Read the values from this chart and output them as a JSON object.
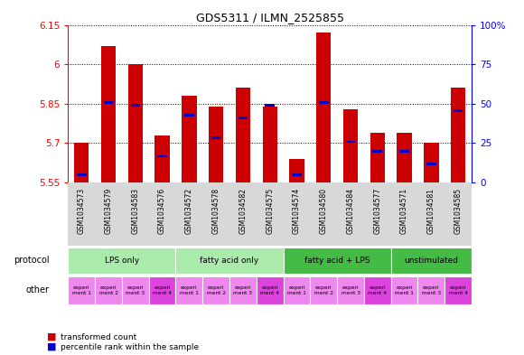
{
  "title": "GDS5311 / ILMN_2525855",
  "samples": [
    "GSM1034573",
    "GSM1034579",
    "GSM1034583",
    "GSM1034576",
    "GSM1034572",
    "GSM1034578",
    "GSM1034582",
    "GSM1034575",
    "GSM1034574",
    "GSM1034580",
    "GSM1034584",
    "GSM1034577",
    "GSM1034571",
    "GSM1034581",
    "GSM1034585"
  ],
  "bar_heights": [
    5.7,
    6.07,
    6.0,
    5.73,
    5.88,
    5.84,
    5.91,
    5.84,
    5.64,
    6.12,
    5.83,
    5.74,
    5.74,
    5.7,
    5.91
  ],
  "blue_positions": [
    5.575,
    5.85,
    5.84,
    5.645,
    5.8,
    5.715,
    5.79,
    5.84,
    5.575,
    5.85,
    5.7,
    5.665,
    5.665,
    5.615,
    5.82
  ],
  "ymin": 5.55,
  "ymax": 6.15,
  "yticks": [
    5.55,
    5.7,
    5.85,
    6.0,
    6.15
  ],
  "ytick_labels": [
    "5.55",
    "5.7",
    "5.85",
    "6",
    "6.15"
  ],
  "y2ticks": [
    0,
    25,
    50,
    75,
    100
  ],
  "y2tick_labels": [
    "0",
    "25",
    "50",
    "75",
    "100%"
  ],
  "groups": [
    {
      "label": "LPS only",
      "start": 0,
      "end": 4,
      "color": "#aaeaaa"
    },
    {
      "label": "fatty acid only",
      "start": 4,
      "end": 8,
      "color": "#aaeaaa"
    },
    {
      "label": "fatty acid + LPS",
      "start": 8,
      "end": 12,
      "color": "#44bb44"
    },
    {
      "label": "unstimulated",
      "start": 12,
      "end": 15,
      "color": "#44bb44"
    }
  ],
  "other_colors": [
    "#ee88ee",
    "#ee88ee",
    "#ee88ee",
    "#dd44dd",
    "#ee88ee",
    "#ee88ee",
    "#ee88ee",
    "#dd44dd",
    "#ee88ee",
    "#ee88ee",
    "#ee88ee",
    "#dd44dd",
    "#ee88ee",
    "#ee88ee",
    "#dd44dd"
  ],
  "other_labels": [
    "experi\nment 1",
    "experi\nment 2",
    "experi\nment 3",
    "experi\nment 4",
    "experi\nment 1",
    "experi\nment 2",
    "experi\nment 3",
    "experi\nment 4",
    "experi\nment 1",
    "experi\nment 2",
    "experi\nment 3",
    "experi\nment 4",
    "experi\nment 1",
    "experi\nment 3",
    "experi\nment 4"
  ],
  "bar_color": "#cc0000",
  "blue_color": "#0000cc",
  "bar_width": 0.55,
  "blue_height": 0.01,
  "protocol_label": "protocol",
  "other_label": "other",
  "xlim_left": -0.5,
  "xlim_right": 14.5
}
